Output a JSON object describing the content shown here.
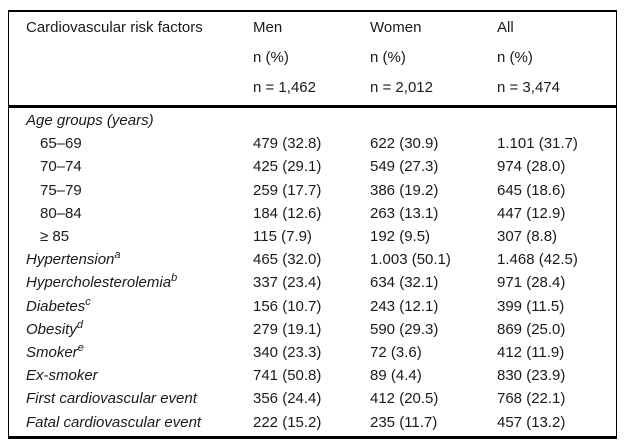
{
  "table": {
    "header": {
      "col1": "Cardiovascular risk factors",
      "men": {
        "label": "Men",
        "unit": "n (%)",
        "total": "n = 1,462"
      },
      "women": {
        "label": "Women",
        "unit": "n (%)",
        "total": "n = 2,012"
      },
      "all": {
        "label": "All",
        "unit": "n (%)",
        "total": "n = 3,474"
      }
    },
    "rows": [
      {
        "label": "Age groups (years)",
        "sup": "",
        "men": "",
        "women": "",
        "all": ""
      },
      {
        "label": "65–69",
        "sup": "",
        "men": "479 (32.8)",
        "women": "622 (30.9)",
        "all": "1.101 (31.7)"
      },
      {
        "label": "70–74",
        "sup": "",
        "men": "425 (29.1)",
        "women": "549 (27.3)",
        "all": "974 (28.0)"
      },
      {
        "label": "75–79",
        "sup": "",
        "men": "259 (17.7)",
        "women": "386 (19.2)",
        "all": "645 (18.6)"
      },
      {
        "label": "80–84",
        "sup": "",
        "men": "184 (12.6)",
        "women": "263 (13.1)",
        "all": "447 (12.9)"
      },
      {
        "label": "≥ 85",
        "sup": "",
        "men": "115 (7.9)",
        "women": "192 (9.5)",
        "all": "307 (8.8)"
      },
      {
        "label": "Hypertension",
        "sup": "a",
        "men": "465 (32.0)",
        "women": "1.003 (50.1)",
        "all": "1.468 (42.5)"
      },
      {
        "label": "Hypercholesterolemia",
        "sup": "b",
        "men": "337 (23.4)",
        "women": "634 (32.1)",
        "all": "971 (28.4)"
      },
      {
        "label": "Diabetes",
        "sup": "c",
        "men": "156 (10.7)",
        "women": "243 (12.1)",
        "all": "399 (11.5)"
      },
      {
        "label": "Obesity",
        "sup": "d",
        "men": "279 (19.1)",
        "women": "590 (29.3)",
        "all": "869 (25.0)"
      },
      {
        "label": "Smoker",
        "sup": "e",
        "men": "340 (23.3)",
        "women": "72 (3.6)",
        "all": "412 (11.9)"
      },
      {
        "label": "Ex-smoker",
        "sup": "",
        "men": "741 (50.8)",
        "women": "89 (4.4)",
        "all": "830 (23.9)"
      },
      {
        "label": "First cardiovascular event",
        "sup": "",
        "men": "356 (24.4)",
        "women": "412 (20.5)",
        "all": "768 (22.1)"
      },
      {
        "label": "Fatal cardiovascular event",
        "sup": "",
        "men": "222 (15.2)",
        "women": "235 (11.7)",
        "all": "457 (13.2)"
      }
    ],
    "colors": {
      "border": "#000000",
      "text": "#1a1a1a",
      "background": "#ffffff"
    }
  }
}
